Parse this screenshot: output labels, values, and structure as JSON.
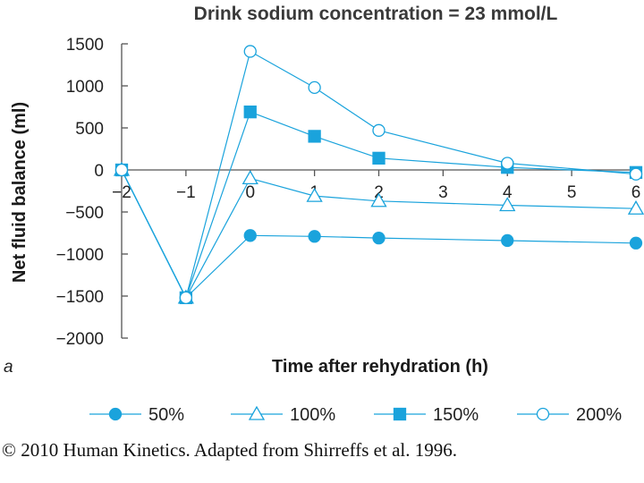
{
  "chart_data": {
    "type": "line",
    "title": "Drink sodium concentration = 23 mmol/L",
    "xlabel": "Time after rehydration (h)",
    "ylabel": "Net fluid balance (ml)",
    "panel_label": "a",
    "xlim": [
      -2,
      6
    ],
    "ylim": [
      -2000,
      1500
    ],
    "x_ticks": [
      -2,
      -1,
      0,
      1,
      2,
      3,
      4,
      5,
      6
    ],
    "x_tick_labels": [
      "−2",
      "−1",
      "0",
      "1",
      "2",
      "3",
      "4",
      "5",
      "6"
    ],
    "y_ticks": [
      1500,
      1000,
      500,
      0,
      -500,
      -1000,
      -1500,
      -2000
    ],
    "y_tick_labels": [
      "1500",
      "1000",
      "500",
      "0",
      "−500",
      "−1000",
      "−1500",
      "−2000"
    ],
    "series": [
      {
        "name": "50%",
        "marker": "filled-circle",
        "x": [
          -2,
          -1,
          0,
          1,
          2,
          4,
          6
        ],
        "values": [
          0,
          -1520,
          -780,
          -790,
          -810,
          -840,
          -870
        ]
      },
      {
        "name": "100%",
        "marker": "open-triangle",
        "x": [
          -2,
          -1,
          0,
          1,
          2,
          4,
          6
        ],
        "values": [
          0,
          -1520,
          -100,
          -310,
          -370,
          -420,
          -460
        ]
      },
      {
        "name": "150%",
        "marker": "filled-square",
        "x": [
          -2,
          -1,
          0,
          1,
          2,
          4,
          6
        ],
        "values": [
          0,
          -1520,
          690,
          400,
          140,
          30,
          -30
        ]
      },
      {
        "name": "200%",
        "marker": "open-circle",
        "x": [
          -2,
          -1,
          0,
          1,
          2,
          4,
          6
        ],
        "values": [
          0,
          -1520,
          1410,
          980,
          470,
          80,
          -50
        ]
      }
    ],
    "legend_position": "bottom",
    "grid": false
  },
  "colors": {
    "series": "#1aa3dc",
    "axis": "#555555"
  },
  "credit": "© 2010 Human Kinetics. Adapted from Shirreffs et al. 1996."
}
